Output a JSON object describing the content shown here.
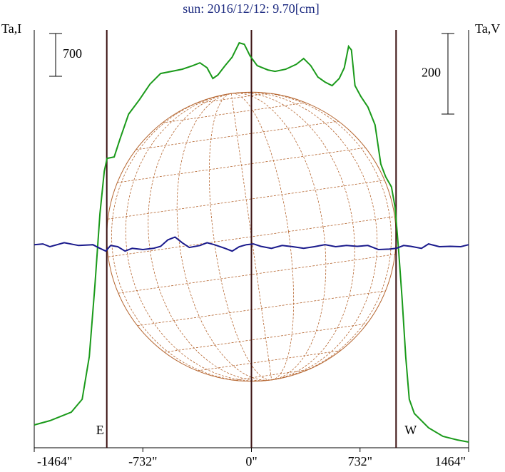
{
  "chart_data": {
    "type": "line",
    "title": "sun: 2016/12/12: 9.70[cm]",
    "xlim": [
      -1464,
      1464
    ],
    "xticks": [
      {
        "value": -1464,
        "label": "-1464\""
      },
      {
        "value": -732,
        "label": "-732\""
      },
      {
        "value": 0,
        "label": "0\""
      },
      {
        "value": 732,
        "label": "732\""
      },
      {
        "value": 1464,
        "label": "1464\""
      }
    ],
    "ylim": [
      0,
      6840
    ],
    "y2lim": [
      -504,
      533
    ],
    "scale_bars": [
      {
        "value": 700,
        "axis": "y"
      },
      {
        "value": 200,
        "axis": "y2"
      }
    ],
    "limb_markers": [
      {
        "x": -975,
        "label": "E"
      },
      {
        "x": 975,
        "label": "W"
      }
    ],
    "series": [
      {
        "name": "Ta,I",
        "color": "#1a9a1a",
        "x": [
          -1464,
          -1358,
          -1214,
          -1141,
          -1093,
          -1055,
          -1021,
          -992,
          -973,
          -925,
          -886,
          -828,
          -756,
          -684,
          -612,
          -539,
          -467,
          -395,
          -347,
          -299,
          -260,
          -226,
          -178,
          -130,
          -82,
          -48,
          -10,
          39,
          111,
          159,
          231,
          303,
          352,
          400,
          448,
          496,
          544,
          592,
          626,
          655,
          674,
          698,
          737,
          785,
          833,
          872,
          905,
          944,
          968,
          992,
          1016,
          1040,
          1064,
          1098,
          1194,
          1291,
          1387,
          1464
        ],
        "values": [
          373,
          443,
          584,
          794,
          1494,
          2661,
          3828,
          4528,
          4738,
          4761,
          5053,
          5462,
          5695,
          5952,
          6127,
          6162,
          6197,
          6255,
          6302,
          6220,
          6045,
          6103,
          6255,
          6395,
          6629,
          6605,
          6419,
          6255,
          6185,
          6162,
          6197,
          6278,
          6372,
          6255,
          6068,
          5987,
          5928,
          6045,
          6220,
          6570,
          6512,
          5928,
          5753,
          5578,
          5286,
          4645,
          4435,
          4271,
          3944,
          3244,
          2427,
          1494,
          794,
          560,
          327,
          187,
          128,
          93
        ]
      },
      {
        "name": "Ta,V",
        "color": "#1a1a8c",
        "axis": "y2",
        "x": [
          -1464,
          -1406,
          -1358,
          -1262,
          -1165,
          -1069,
          -1021,
          -982,
          -949,
          -901,
          -852,
          -804,
          -732,
          -660,
          -612,
          -563,
          -515,
          -467,
          -419,
          -347,
          -299,
          -250,
          -178,
          -130,
          -82,
          -34,
          14,
          63,
          135,
          207,
          279,
          352,
          424,
          496,
          568,
          641,
          713,
          785,
          857,
          929,
          977,
          1026,
          1074,
          1146,
          1194,
          1267,
          1339,
          1411,
          1464
        ],
        "values": [
          0,
          2,
          -5,
          5,
          -2,
          0,
          -9,
          -16,
          -2,
          -5,
          -16,
          -9,
          -12,
          -9,
          -4,
          12,
          19,
          5,
          -7,
          -2,
          5,
          0,
          -9,
          -16,
          -5,
          0,
          2,
          -4,
          -9,
          -2,
          -5,
          -9,
          -5,
          0,
          -5,
          -2,
          -4,
          -2,
          -12,
          -11,
          -9,
          -2,
          -4,
          -9,
          2,
          -5,
          -4,
          -5,
          0
        ]
      }
    ]
  }
}
